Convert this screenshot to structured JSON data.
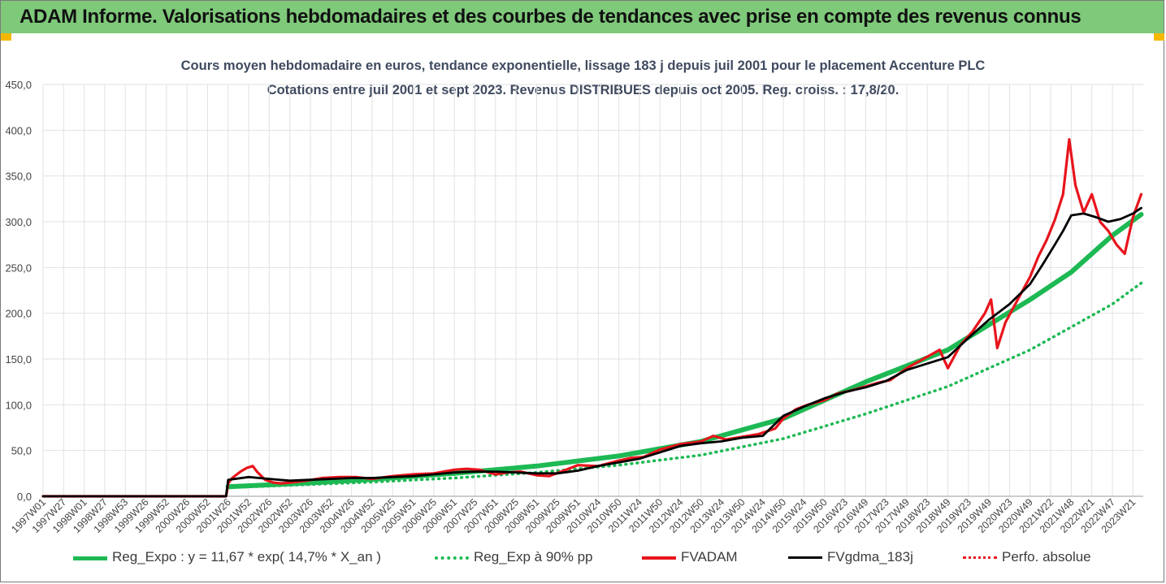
{
  "header": {
    "title": "ADAM Informe. Valorisations hebdomadaires et des courbes de tendances avec prise en compte des revenus connus"
  },
  "colors": {
    "header_bg": "#7fc97a",
    "corner": "#f5b800",
    "green": "#1db954",
    "red": "#e8141c",
    "black": "#000000",
    "grid": "#e2e2e2"
  },
  "chart_data": {
    "type": "line",
    "title": "Cours moyen hebdomadaire en euros, tendance exponentielle, lissage 183 j depuis juil 2001 pour le placement Accenture PLC",
    "subtitle": "Cotations entre juil 2001 et sept 2023. Revenus DISTRIBUES depuis oct 2005. Reg. croiss. : 17,8/20.",
    "ylim": [
      0,
      450
    ],
    "y_ticks": [
      "0,0",
      "50,0",
      "100,0",
      "150,0",
      "200,0",
      "250,0",
      "300,0",
      "350,0",
      "400,0",
      "450,0"
    ],
    "x_ticks": [
      "1997W01",
      "1997W27",
      "1998W01",
      "1998W27",
      "1998W53",
      "1999W26",
      "1999W52",
      "2000W26",
      "2000W52",
      "2001W26",
      "2001W52",
      "2002W26",
      "2002W52",
      "2003W26",
      "2003W52",
      "2004W26",
      "2004W52",
      "2005W25",
      "2005W51",
      "2006W25",
      "2006W51",
      "2007W25",
      "2007W51",
      "2008W25",
      "2008W51",
      "2009W25",
      "2009W51",
      "2010W24",
      "2010W50",
      "2011W24",
      "2011W50",
      "2012W24",
      "2012W50",
      "2013W24",
      "2013W50",
      "2014W24",
      "2014W50",
      "2015W24",
      "2015W50",
      "2016W23",
      "2016W49",
      "2017W23",
      "2017W49",
      "2018W23",
      "2018W49",
      "2019W23",
      "2019W49",
      "2020W23",
      "2020W49",
      "2021W22",
      "2021W48",
      "2022W21",
      "2022W47",
      "2023W21"
    ],
    "x_start": 1997.0,
    "x_end": 2023.75,
    "series": [
      {
        "name": "Reg_Expo : y = 11,67 * exp( 14,7% * X_an )",
        "style": "green-solid",
        "x": [
          2001.5,
          2003,
          2005,
          2007,
          2009,
          2011,
          2013,
          2015,
          2017,
          2019,
          2021,
          2022,
          2023,
          2023.7
        ],
        "y": [
          10.5,
          13.5,
          18.5,
          25,
          33,
          44,
          60,
          85,
          125,
          160,
          215,
          245,
          285,
          308
        ]
      },
      {
        "name": "Reg_Exp à 90% pp",
        "style": "green-dotted",
        "x": [
          2001.5,
          2003,
          2005,
          2007,
          2009,
          2011,
          2013,
          2015,
          2017,
          2019,
          2021,
          2022,
          2023,
          2023.7
        ],
        "y": [
          9.5,
          12,
          15.5,
          20,
          26,
          34,
          45,
          63,
          90,
          120,
          160,
          185,
          210,
          233
        ]
      },
      {
        "name": "FVADAM",
        "style": "red",
        "x": [
          1997.0,
          2001.45,
          2001.5,
          2001.6,
          2001.8,
          2001.95,
          2002.1,
          2002.2,
          2002.4,
          2002.6,
          2002.8,
          2003,
          2003.4,
          2003.8,
          2004.2,
          2004.6,
          2005,
          2005.5,
          2006,
          2006.5,
          2007,
          2007.3,
          2007.6,
          2008,
          2008.3,
          2008.6,
          2009,
          2009.3,
          2009.6,
          2010,
          2010.5,
          2011,
          2011.3,
          2011.6,
          2012,
          2012.5,
          2013,
          2013.3,
          2013.6,
          2014,
          2014.4,
          2014.8,
          2015,
          2015.3,
          2015.6,
          2016,
          2016.3,
          2016.6,
          2017,
          2017.3,
          2017.6,
          2018,
          2018.2,
          2018.4,
          2018.6,
          2018.8,
          2019,
          2019.3,
          2019.6,
          2019.9,
          2020.05,
          2020.2,
          2020.4,
          2020.7,
          2021,
          2021.2,
          2021.4,
          2021.6,
          2021.8,
          2021.95,
          2022.1,
          2022.3,
          2022.5,
          2022.7,
          2022.9,
          2023.1,
          2023.3,
          2023.5,
          2023.7
        ],
        "y": [
          0,
          0,
          14,
          20,
          27,
          31,
          33,
          27,
          18,
          15,
          14,
          15,
          17,
          20,
          21,
          21,
          19,
          22,
          24,
          25,
          29,
          30,
          29,
          24,
          26,
          27,
          23,
          22,
          27,
          34,
          33,
          39,
          42,
          43,
          51,
          57,
          60,
          66,
          62,
          65,
          68,
          74,
          85,
          95,
          100,
          105,
          112,
          115,
          120,
          124,
          127,
          140,
          145,
          150,
          155,
          160,
          140,
          165,
          180,
          200,
          215,
          162,
          190,
          215,
          240,
          262,
          280,
          302,
          330,
          390,
          340,
          310,
          330,
          300,
          290,
          275,
          265,
          305,
          330
        ]
      },
      {
        "name": "FVgdma_183j",
        "style": "black",
        "x": [
          1997.0,
          2001.45,
          2001.5,
          2002.0,
          2002.5,
          2003,
          2003.5,
          2004,
          2004.5,
          2005,
          2005.5,
          2006,
          2006.5,
          2007,
          2007.5,
          2008,
          2008.5,
          2009,
          2009.5,
          2010,
          2010.5,
          2011,
          2011.5,
          2012,
          2012.5,
          2013,
          2013.5,
          2014,
          2014.5,
          2015,
          2015.5,
          2016,
          2016.5,
          2017,
          2017.5,
          2018,
          2018.5,
          2019,
          2019.5,
          2020,
          2020.5,
          2021,
          2021.3,
          2021.6,
          2021.8,
          2022,
          2022.3,
          2022.6,
          2022.9,
          2023.2,
          2023.5,
          2023.7
        ],
        "y": [
          0,
          0,
          18,
          21,
          19,
          17,
          18,
          19,
          20,
          20,
          21,
          22,
          24,
          26,
          27,
          27,
          26,
          25,
          25,
          28,
          33,
          37,
          41,
          48,
          55,
          58,
          60,
          64,
          66,
          88,
          98,
          107,
          114,
          119,
          126,
          138,
          145,
          152,
          173,
          193,
          210,
          232,
          253,
          275,
          290,
          307,
          309,
          305,
          300,
          303,
          309,
          315
        ]
      },
      {
        "name": "Perfo. absolue",
        "style": "red-dotted",
        "x": [],
        "y": []
      }
    ]
  }
}
